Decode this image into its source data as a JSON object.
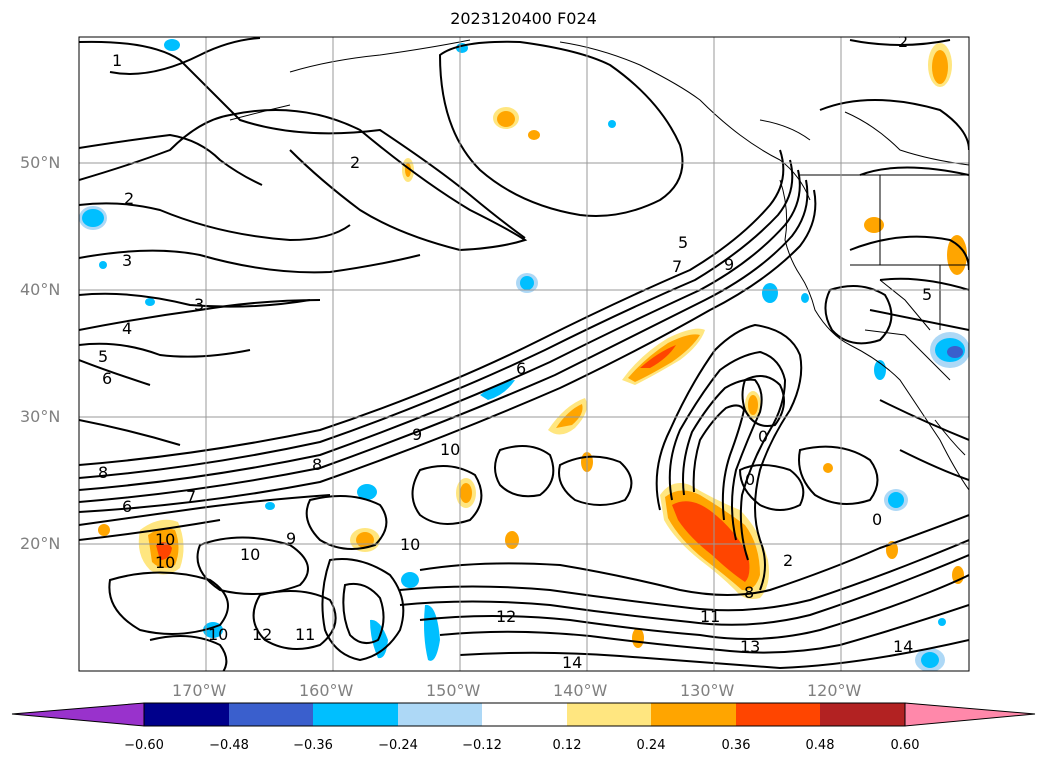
{
  "title": "2023120400 F024",
  "map": {
    "lat_labels": [
      "20°N",
      "30°N",
      "40°N",
      "50°N"
    ],
    "lon_labels": [
      "170°W",
      "160°W",
      "150°W",
      "140°W",
      "130°W",
      "120°W"
    ],
    "colors": {
      "contour": "#000000",
      "coast": "#000000",
      "grid": "#999999"
    }
  },
  "colorbar": {
    "ticks": [
      "−0.60",
      "−0.48",
      "−0.36",
      "−0.24",
      "−0.12",
      "0.12",
      "0.24",
      "0.36",
      "0.48",
      "0.60"
    ],
    "colors": [
      "#9932cc",
      "#00008b",
      "#3a5fcd",
      "#00bfff",
      "#add8f6",
      "#ffffff",
      "#ffe680",
      "#ffa500",
      "#ff4500",
      "#b22222",
      "#ff88aa"
    ]
  },
  "contour_labels": [
    "1",
    "2",
    "2",
    "2",
    "3",
    "3",
    "4",
    "5",
    "6",
    "6",
    "7",
    "8",
    "8",
    "9",
    "9",
    "10",
    "10",
    "10",
    "10",
    "10",
    "10",
    "11",
    "11",
    "12",
    "12",
    "13",
    "14",
    "14",
    "0",
    "0",
    "0",
    "2",
    "5",
    "5",
    "7",
    "9",
    "6",
    "8"
  ]
}
